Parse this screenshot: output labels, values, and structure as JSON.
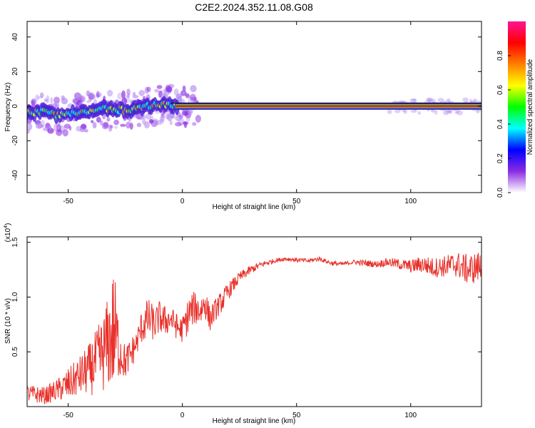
{
  "title": "C2E2.2024.352.11.08.G08",
  "colors": {
    "snr_line": "#e8302a",
    "axis": "#000000",
    "grid_bg": "#ffffff"
  },
  "chart_data": [
    {
      "type": "heatmap",
      "xlabel": "Height of straight line (km)",
      "ylabel": "Frequency (Hz)",
      "xlim": [
        -68,
        131
      ],
      "ylim": [
        -50,
        49
      ],
      "xticks": [
        -50,
        0,
        50,
        100
      ],
      "yticks": [
        -40,
        -20,
        0,
        20,
        40
      ],
      "colorbar": {
        "label": "Normalized spectral amplitude",
        "range": [
          0,
          1
        ],
        "ticks": [
          "0.0",
          "0.2",
          "0.4",
          "0.6",
          "0.8"
        ],
        "colormap": [
          "#ffffff",
          "#8a2be2",
          "#0000ff",
          "#00ffff",
          "#00ff00",
          "#ffff00",
          "#ff7f00",
          "#ff0000",
          "#ff1493"
        ]
      },
      "ridge": {
        "description_points": [
          [
            -68,
            -4
          ],
          [
            -60,
            -3
          ],
          [
            -55,
            -5
          ],
          [
            -50,
            -5
          ],
          [
            -45,
            -4
          ],
          [
            -40,
            -3
          ],
          [
            -35,
            -1
          ],
          [
            -30,
            -2
          ],
          [
            -25,
            -2
          ],
          [
            -20,
            -2
          ],
          [
            -15,
            0
          ],
          [
            -10,
            1
          ],
          [
            -5,
            1
          ],
          [
            0,
            0
          ],
          [
            50,
            0
          ],
          [
            100,
            0
          ],
          [
            131,
            0
          ]
        ],
        "note": ""
      }
    },
    {
      "type": "line",
      "xlabel": "Height of straight line (km)",
      "ylabel": "SNR (10 * v/v)",
      "yscale_label": "(x10",
      "yscale_exp": "4",
      "yscale_close": ")",
      "xlim": [
        -68,
        131
      ],
      "ylim": [
        0.0,
        1.55
      ],
      "xticks": [
        -50,
        0,
        50,
        100
      ],
      "yticks": [
        0.5,
        1.0,
        1.5
      ],
      "ytick_labels": [
        "0.5",
        "1.0",
        "1.5"
      ],
      "series": [
        {
          "name": "",
          "x": [
            -68,
            -60,
            -55,
            -50,
            -45,
            -40,
            -35,
            -32,
            -30,
            -28,
            -25,
            -22,
            -20,
            -18,
            -15,
            -12,
            -10,
            -8,
            -5,
            -2,
            0,
            3,
            5,
            8,
            10,
            12,
            15,
            18,
            20,
            25,
            30,
            35,
            40,
            45,
            50,
            55,
            60,
            65,
            70,
            75,
            80,
            85,
            90,
            95,
            100,
            105,
            110,
            115,
            120,
            125,
            131
          ],
          "y": [
            0.12,
            0.1,
            0.15,
            0.2,
            0.28,
            0.35,
            0.48,
            0.6,
            0.7,
            0.55,
            0.4,
            0.5,
            0.58,
            0.72,
            0.8,
            0.75,
            0.82,
            0.78,
            0.8,
            0.72,
            0.7,
            0.85,
            0.9,
            0.88,
            0.95,
            0.8,
            0.9,
            0.98,
            1.05,
            1.18,
            1.25,
            1.3,
            1.33,
            1.35,
            1.34,
            1.33,
            1.35,
            1.31,
            1.3,
            1.32,
            1.31,
            1.3,
            1.32,
            1.3,
            1.28,
            1.3,
            1.27,
            1.28,
            1.3,
            1.25,
            1.28
          ],
          "noise_amplitude": [
            0.08,
            0.08,
            0.1,
            0.15,
            0.18,
            0.25,
            0.35,
            0.45,
            0.6,
            0.3,
            0.15,
            0.15,
            0.12,
            0.15,
            0.2,
            0.15,
            0.15,
            0.15,
            0.12,
            0.12,
            0.12,
            0.18,
            0.15,
            0.15,
            0.15,
            0.12,
            0.1,
            0.1,
            0.08,
            0.05,
            0.04,
            0.03,
            0.02,
            0.02,
            0.02,
            0.02,
            0.02,
            0.02,
            0.02,
            0.02,
            0.03,
            0.03,
            0.04,
            0.05,
            0.06,
            0.08,
            0.09,
            0.1,
            0.12,
            0.14,
            0.15
          ]
        }
      ]
    }
  ]
}
